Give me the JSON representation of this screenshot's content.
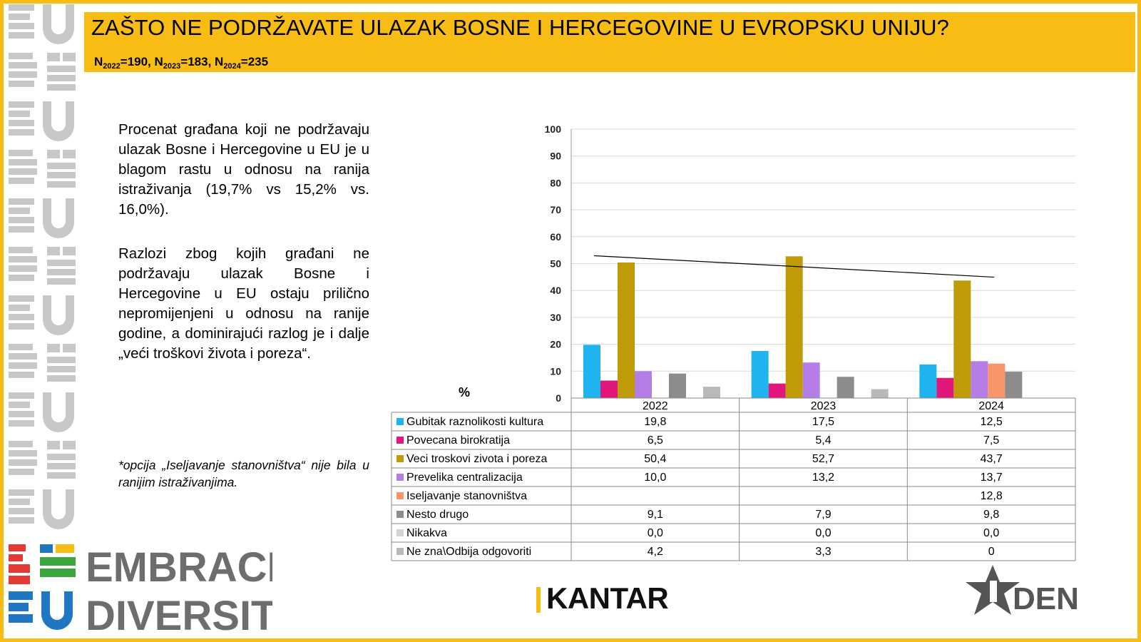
{
  "header": {
    "title": "ZAŠTO NE PODRŽAVATE ULAZAK BOSNE I HERCEGOVINE U EVROPSKU UNIJU?",
    "n1_label": "N",
    "n1_sub": "2022",
    "n1_val": "=190, ",
    "n2_label": "N",
    "n2_sub": "2023",
    "n2_val": "=183, ",
    "n3_label": "N",
    "n3_sub": "2024",
    "n3_val": "=235"
  },
  "text": {
    "para1": "Procenat građana koji ne podržavaju ulazak Bosne i Hercegovine u EU je u blagom rastu u odnosu na ranija istraživanja (19,7% vs 15,2% vs. 16,0%).",
    "para2": "Razlozi zbog kojih građani ne podržavaju ulazak Bosne i Hercegovine u EU ostaju prilično nepromijenjeni u odnosu na ranije godine, a dominirajući razlog je i dalje „veći troškovi života i poreza“.",
    "note": "*opcija „Iseljavanje stanovništva“ nije bila u ranijim istraživanjima."
  },
  "logos": {
    "embrace_line1": "EMBRACE",
    "embrace_line2": "DIVERSITY",
    "kantar": "KANTAR",
    "iden": "DEN"
  },
  "chart_data": {
    "type": "bar",
    "unit_label": "%",
    "categories": [
      "2022",
      "2023",
      "2024"
    ],
    "ylim": [
      0,
      100
    ],
    "yticks": [
      0,
      10,
      20,
      30,
      40,
      50,
      60,
      70,
      80,
      90,
      100
    ],
    "grid": true,
    "legend": "table-below",
    "series": [
      {
        "name": "Gubitak raznolikosti kultura",
        "color": "#1fb4f0",
        "values": [
          19.8,
          17.5,
          12.5
        ],
        "labels": [
          "19,8",
          "17,5",
          "12,5"
        ]
      },
      {
        "name": "Povecana birokratija",
        "color": "#e0187c",
        "values": [
          6.5,
          5.4,
          7.5
        ],
        "labels": [
          "6,5",
          "5,4",
          "7,5"
        ]
      },
      {
        "name": "Veci troskovi zivota i poreza",
        "color": "#bf9b08",
        "values": [
          50.4,
          52.7,
          43.7
        ],
        "labels": [
          "50,4",
          "52,7",
          "43,7"
        ]
      },
      {
        "name": "Prevelika centralizacija",
        "color": "#b57ee6",
        "values": [
          10.0,
          13.2,
          13.7
        ],
        "labels": [
          "10,0",
          "13,2",
          "13,7"
        ]
      },
      {
        "name": "Iseljavanje stanovništva",
        "color": "#f8966a",
        "values": [
          null,
          null,
          12.8
        ],
        "labels": [
          "",
          "",
          "12,8"
        ]
      },
      {
        "name": "Nesto drugo",
        "color": "#8c8c8c",
        "values": [
          9.1,
          7.9,
          9.8
        ],
        "labels": [
          "9,1",
          "7,9",
          "9,8"
        ]
      },
      {
        "name": "Nikakva",
        "color": "#d3d3d3",
        "values": [
          0.0,
          0.0,
          0.0
        ],
        "labels": [
          "0,0",
          "0,0",
          "0,0"
        ]
      },
      {
        "name": "Ne zna\\Odbija odgovoriti",
        "color": "#b9b9b9",
        "values": [
          4.2,
          3.3,
          0
        ],
        "labels": [
          "4,2",
          "3,3",
          "0"
        ]
      }
    ],
    "trendline": {
      "series": "Veci troskovi zivota i poreza",
      "color": "#000000"
    }
  }
}
